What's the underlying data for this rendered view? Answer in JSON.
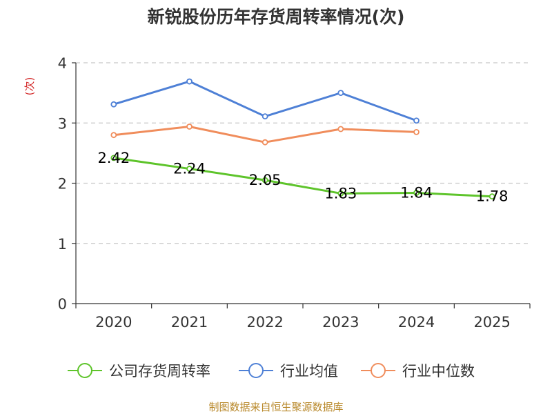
{
  "chart_data": {
    "type": "line",
    "title": "新锐股份历年存货周转率情况(次)",
    "ylabel": "(次)",
    "xlabel": "",
    "ylim": [
      0,
      4
    ],
    "yticks": [
      "0",
      "1",
      "2",
      "3",
      "4"
    ],
    "categories": [
      "2020",
      "2021",
      "2022",
      "2023",
      "2024",
      "2025"
    ],
    "grid": true,
    "legend_position": "bottom",
    "series": [
      {
        "name": "公司存货周转率",
        "color": "#5ec42b",
        "values": [
          2.42,
          2.24,
          2.05,
          1.83,
          1.84,
          1.78
        ],
        "labels": [
          "2.42",
          "2.24",
          "2.05",
          "1.83",
          "1.84",
          "1.78"
        ]
      },
      {
        "name": "行业均值",
        "color": "#4e80d6",
        "values": [
          3.31,
          3.69,
          3.11,
          3.5,
          3.04,
          null
        ]
      },
      {
        "name": "行业中位数",
        "color": "#f08d5c",
        "values": [
          2.8,
          2.94,
          2.68,
          2.9,
          2.85,
          null
        ]
      }
    ],
    "source": "制图数据来自恒生聚源数据库"
  }
}
